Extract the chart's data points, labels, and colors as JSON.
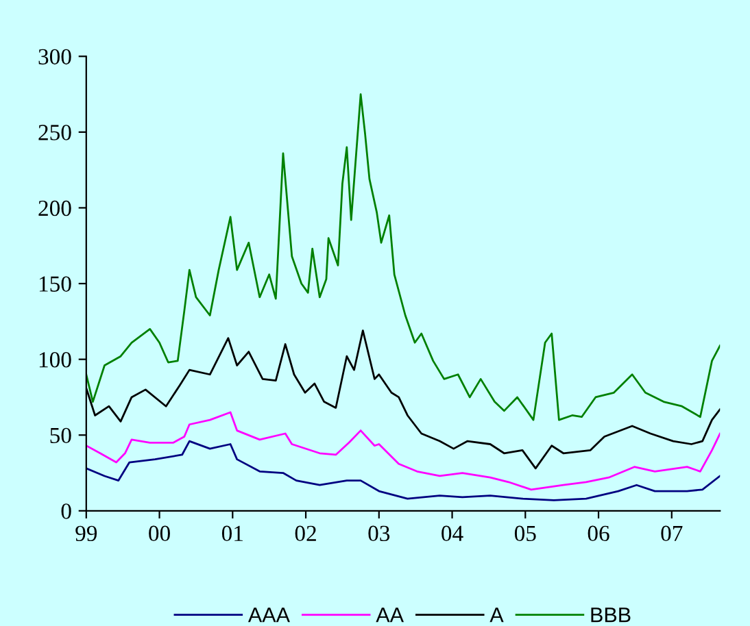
{
  "chart_data": {
    "type": "line",
    "xlim": [
      1999,
      2007.66
    ],
    "ylim": [
      0,
      300
    ],
    "yticks": [
      0,
      50,
      100,
      150,
      200,
      250,
      300
    ],
    "xticks": [
      {
        "value": 1999,
        "label": "99"
      },
      {
        "value": 2000,
        "label": "00"
      },
      {
        "value": 2001,
        "label": "01"
      },
      {
        "value": 2002,
        "label": "02"
      },
      {
        "value": 2003,
        "label": "03"
      },
      {
        "value": 2004,
        "label": "04"
      },
      {
        "value": 2005,
        "label": "05"
      },
      {
        "value": 2006,
        "label": "06"
      },
      {
        "value": 2007,
        "label": "07"
      }
    ],
    "grid": false,
    "legend": "bottom",
    "marker": "none",
    "line_style": "solid",
    "series": [
      {
        "name": "AAA",
        "color": "#000080",
        "x": [
          1999.0,
          1999.25,
          1999.44,
          1999.59,
          1999.94,
          2000.31,
          2000.41,
          2000.69,
          2000.97,
          2001.06,
          2001.37,
          2001.69,
          2001.87,
          2002.19,
          2002.56,
          2002.75,
          2003.0,
          2003.39,
          2003.83,
          2004.14,
          2004.52,
          2004.96,
          2005.39,
          2005.83,
          2006.27,
          2006.52,
          2006.77,
          2007.21,
          2007.42,
          2007.66
        ],
        "values": [
          28,
          23,
          20,
          32,
          34,
          37,
          46,
          41,
          44,
          34,
          26,
          25,
          20,
          17,
          20,
          20,
          13,
          8,
          10,
          9,
          10,
          8,
          7,
          8,
          13,
          17,
          13,
          13,
          14,
          23
        ]
      },
      {
        "name": "AA",
        "color": "#ff00ff",
        "x": [
          1999.0,
          1999.19,
          1999.41,
          1999.53,
          1999.62,
          1999.87,
          2000.19,
          2000.34,
          2000.41,
          2000.69,
          2000.97,
          2001.06,
          2001.37,
          2001.72,
          2001.81,
          2002.19,
          2002.41,
          2002.59,
          2002.75,
          2002.94,
          2003.0,
          2003.27,
          2003.52,
          2003.83,
          2004.14,
          2004.52,
          2004.77,
          2005.08,
          2005.52,
          2005.83,
          2006.14,
          2006.49,
          2006.77,
          2007.21,
          2007.39,
          2007.55,
          2007.66
        ],
        "values": [
          43,
          38,
          32,
          38,
          47,
          45,
          45,
          49,
          57,
          60,
          65,
          53,
          47,
          51,
          44,
          38,
          37,
          45,
          53,
          43,
          44,
          31,
          26,
          23,
          25,
          22,
          19,
          14,
          17,
          19,
          22,
          29,
          26,
          29,
          26,
          40,
          51
        ]
      },
      {
        "name": "A",
        "color": "#000000",
        "x": [
          1999.0,
          1999.12,
          1999.31,
          1999.47,
          1999.62,
          1999.81,
          2000.09,
          2000.28,
          2000.41,
          2000.69,
          2000.94,
          2001.06,
          2001.22,
          2001.41,
          2001.59,
          2001.72,
          2001.84,
          2001.99,
          2002.12,
          2002.25,
          2002.41,
          2002.56,
          2002.66,
          2002.78,
          2002.94,
          2003.0,
          2003.17,
          2003.27,
          2003.39,
          2003.58,
          2003.83,
          2004.02,
          2004.21,
          2004.52,
          2004.71,
          2004.96,
          2005.14,
          2005.36,
          2005.52,
          2005.89,
          2006.08,
          2006.46,
          2006.71,
          2007.02,
          2007.27,
          2007.42,
          2007.55,
          2007.66
        ],
        "values": [
          81,
          63,
          69,
          59,
          75,
          80,
          69,
          83,
          93,
          90,
          114,
          96,
          105,
          87,
          86,
          110,
          90,
          78,
          84,
          72,
          68,
          102,
          93,
          119,
          87,
          90,
          78,
          75,
          63,
          51,
          46,
          41,
          46,
          44,
          38,
          40,
          28,
          43,
          38,
          40,
          49,
          56,
          51,
          46,
          44,
          46,
          60,
          67
        ]
      },
      {
        "name": "BBB",
        "color": "#008000",
        "x": [
          1999.0,
          1999.09,
          1999.25,
          1999.47,
          1999.62,
          1999.87,
          2000.0,
          2000.12,
          2000.25,
          2000.34,
          2000.41,
          2000.5,
          2000.69,
          2000.81,
          2000.97,
          2001.06,
          2001.22,
          2001.37,
          2001.5,
          2001.59,
          2001.69,
          2001.81,
          2001.94,
          2002.03,
          2002.09,
          2002.19,
          2002.28,
          2002.31,
          2002.44,
          2002.5,
          2002.56,
          2002.62,
          2002.75,
          2002.81,
          2002.87,
          2002.97,
          2003.03,
          2003.14,
          2003.21,
          2003.36,
          2003.49,
          2003.58,
          2003.74,
          2003.89,
          2004.08,
          2004.24,
          2004.39,
          2004.58,
          2004.71,
          2004.89,
          2005.11,
          2005.27,
          2005.36,
          2005.46,
          2005.64,
          2005.77,
          2005.96,
          2006.21,
          2006.46,
          2006.64,
          2006.89,
          2007.14,
          2007.39,
          2007.55,
          2007.66
        ],
        "values": [
          90,
          72,
          96,
          102,
          111,
          120,
          111,
          98,
          99,
          132,
          159,
          141,
          129,
          159,
          194,
          159,
          177,
          141,
          156,
          140,
          236,
          168,
          150,
          144,
          173,
          141,
          153,
          180,
          162,
          216,
          240,
          192,
          275,
          249,
          219,
          197,
          177,
          195,
          156,
          129,
          111,
          117,
          99,
          87,
          90,
          75,
          87,
          72,
          66,
          75,
          60,
          111,
          117,
          60,
          63,
          62,
          75,
          78,
          90,
          78,
          72,
          69,
          62,
          99,
          109
        ]
      }
    ]
  }
}
